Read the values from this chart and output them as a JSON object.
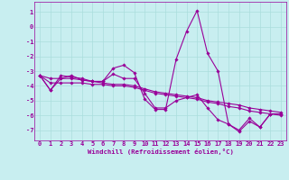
{
  "xlabel": "Windchill (Refroidissement éolien,°C)",
  "ylabel": "",
  "background_color": "#c8eef0",
  "grid_color": "#aadddd",
  "line_color": "#990099",
  "xlim": [
    -0.5,
    23.5
  ],
  "ylim": [
    -7.7,
    1.7
  ],
  "yticks": [
    1,
    0,
    -1,
    -2,
    -3,
    -4,
    -5,
    -6,
    -7
  ],
  "xticks": [
    0,
    1,
    2,
    3,
    4,
    5,
    6,
    7,
    8,
    9,
    10,
    11,
    12,
    13,
    14,
    15,
    16,
    17,
    18,
    19,
    20,
    21,
    22,
    23
  ],
  "lines": [
    {
      "x": [
        0,
        1,
        2,
        3,
        4,
        5,
        6,
        7,
        8,
        9,
        10,
        11,
        12,
        13,
        14,
        15,
        16,
        17,
        18,
        19,
        20,
        21,
        22,
        23
      ],
      "y": [
        -3.3,
        -4.3,
        -3.3,
        -3.4,
        -3.5,
        -3.7,
        -3.7,
        -2.8,
        -2.6,
        -3.1,
        -4.9,
        -5.6,
        -5.6,
        -2.2,
        -0.3,
        1.1,
        -1.8,
        -3.0,
        -6.6,
        -7.0,
        -6.2,
        -6.8,
        -5.9,
        -5.9
      ]
    },
    {
      "x": [
        0,
        1,
        2,
        3,
        4,
        5,
        6,
        7,
        8,
        9,
        10,
        11,
        12,
        13,
        14,
        15,
        16,
        17,
        18,
        19,
        20,
        21,
        22,
        23
      ],
      "y": [
        -3.3,
        -3.5,
        -3.5,
        -3.5,
        -3.6,
        -3.7,
        -3.8,
        -3.9,
        -3.9,
        -4.0,
        -4.2,
        -4.4,
        -4.5,
        -4.6,
        -4.7,
        -4.8,
        -5.0,
        -5.1,
        -5.2,
        -5.3,
        -5.5,
        -5.6,
        -5.7,
        -5.8
      ]
    },
    {
      "x": [
        0,
        1,
        2,
        3,
        4,
        5,
        6,
        7,
        8,
        9,
        10,
        11,
        12,
        13,
        14,
        15,
        16,
        17,
        18,
        19,
        20,
        21,
        22,
        23
      ],
      "y": [
        -3.3,
        -3.8,
        -3.8,
        -3.8,
        -3.8,
        -3.9,
        -3.9,
        -4.0,
        -4.0,
        -4.1,
        -4.3,
        -4.5,
        -4.6,
        -4.7,
        -4.8,
        -4.9,
        -5.1,
        -5.2,
        -5.4,
        -5.5,
        -5.7,
        -5.8,
        -5.9,
        -6.0
      ]
    },
    {
      "x": [
        0,
        1,
        2,
        3,
        4,
        5,
        6,
        7,
        8,
        9,
        10,
        11,
        12,
        13,
        14,
        15,
        16,
        17,
        18,
        19,
        20,
        21,
        22,
        23
      ],
      "y": [
        -3.3,
        -4.3,
        -3.5,
        -3.3,
        -3.6,
        -3.7,
        -3.7,
        -3.2,
        -3.5,
        -3.5,
        -4.5,
        -5.5,
        -5.5,
        -5.0,
        -4.8,
        -4.6,
        -5.5,
        -6.3,
        -6.6,
        -7.1,
        -6.4,
        -6.8,
        -5.9,
        -5.9
      ]
    }
  ],
  "marker": "D",
  "markersize": 1.8,
  "linewidth": 0.8,
  "tick_fontsize": 5.0,
  "xlabel_fontsize": 5.2
}
